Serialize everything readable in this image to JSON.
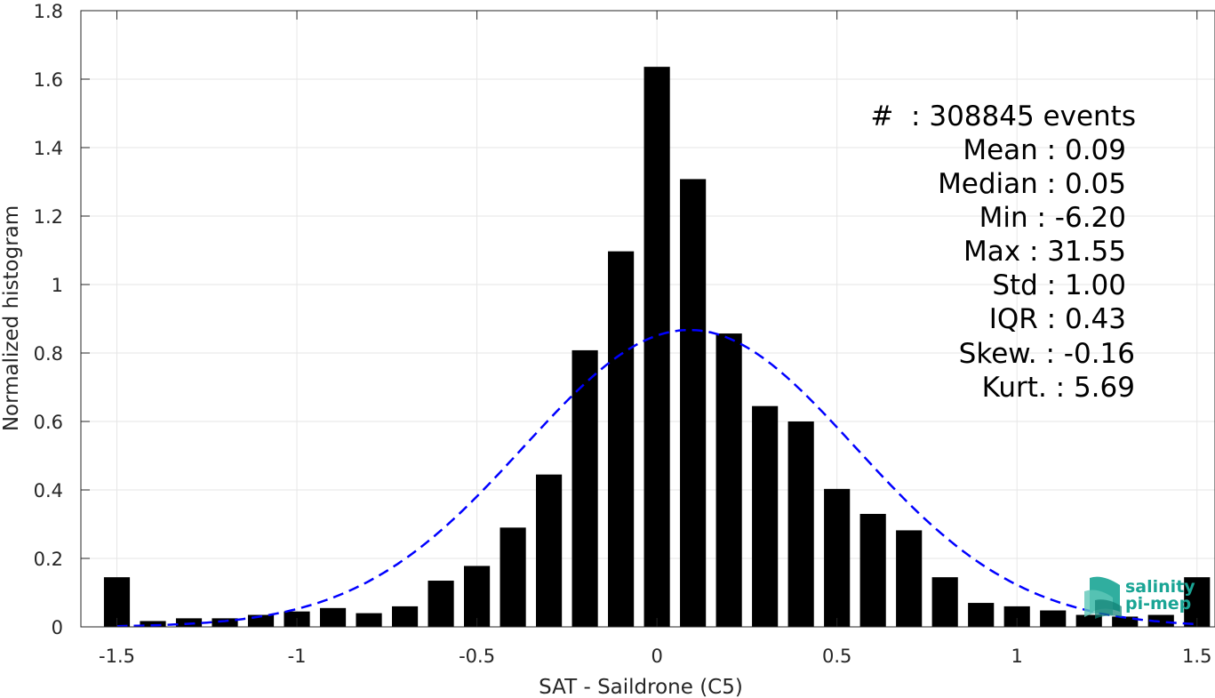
{
  "chart_data": {
    "type": "bar",
    "xlabel": "SAT - Saildrone (C5)",
    "ylabel": "Normalized histogram",
    "xlim": [
      -1.6,
      1.55
    ],
    "ylim": [
      0,
      1.8
    ],
    "xticks": [
      -1.5,
      -1,
      -0.5,
      0,
      0.5,
      1,
      1.5
    ],
    "xtick_labels": [
      "-1.5",
      "-1",
      "-0.5",
      "0",
      "0.5",
      "1",
      "1.5"
    ],
    "yticks": [
      0,
      0.2,
      0.4,
      0.6,
      0.8,
      1,
      1.2,
      1.4,
      1.6,
      1.8
    ],
    "ytick_labels": [
      "0",
      "0.2",
      "0.4",
      "0.6",
      "0.8",
      "1",
      "1.2",
      "1.4",
      "1.6",
      "1.8"
    ],
    "grid": true,
    "bar_color": "#000000",
    "bin_width": 0.1,
    "bins": [
      {
        "x": -1.5,
        "y": 0.145
      },
      {
        "x": -1.4,
        "y": 0.017
      },
      {
        "x": -1.3,
        "y": 0.025
      },
      {
        "x": -1.2,
        "y": 0.025
      },
      {
        "x": -1.1,
        "y": 0.035
      },
      {
        "x": -1.0,
        "y": 0.045
      },
      {
        "x": -0.9,
        "y": 0.055
      },
      {
        "x": -0.8,
        "y": 0.04
      },
      {
        "x": -0.7,
        "y": 0.06
      },
      {
        "x": -0.6,
        "y": 0.135
      },
      {
        "x": -0.5,
        "y": 0.178
      },
      {
        "x": -0.4,
        "y": 0.29
      },
      {
        "x": -0.3,
        "y": 0.445
      },
      {
        "x": -0.2,
        "y": 0.808
      },
      {
        "x": -0.1,
        "y": 1.097
      },
      {
        "x": 0.0,
        "y": 1.636
      },
      {
        "x": 0.1,
        "y": 1.308
      },
      {
        "x": 0.2,
        "y": 0.857
      },
      {
        "x": 0.3,
        "y": 0.645
      },
      {
        "x": 0.4,
        "y": 0.6
      },
      {
        "x": 0.5,
        "y": 0.403
      },
      {
        "x": 0.6,
        "y": 0.33
      },
      {
        "x": 0.7,
        "y": 0.282
      },
      {
        "x": 0.8,
        "y": 0.145
      },
      {
        "x": 0.9,
        "y": 0.07
      },
      {
        "x": 1.0,
        "y": 0.06
      },
      {
        "x": 1.1,
        "y": 0.048
      },
      {
        "x": 1.2,
        "y": 0.035
      },
      {
        "x": 1.3,
        "y": 0.03
      },
      {
        "x": 1.4,
        "y": 0.035
      },
      {
        "x": 1.5,
        "y": 0.145
      }
    ],
    "gaussian_fit": {
      "mean": 0.09,
      "std": 0.46,
      "color": "#0000ff",
      "style": "dashed"
    },
    "stats": [
      "#  : 308845 events",
      "Mean : 0.09",
      "Median : 0.05",
      "Min : -6.20",
      "Max : 31.55",
      "Std : 1.00",
      "IQR : 0.43",
      "Skew. : -0.16",
      "Kurt. : 5.69"
    ]
  },
  "logo": {
    "line1": "salinity",
    "line2": "pi-mep",
    "color": "#1aa595"
  }
}
